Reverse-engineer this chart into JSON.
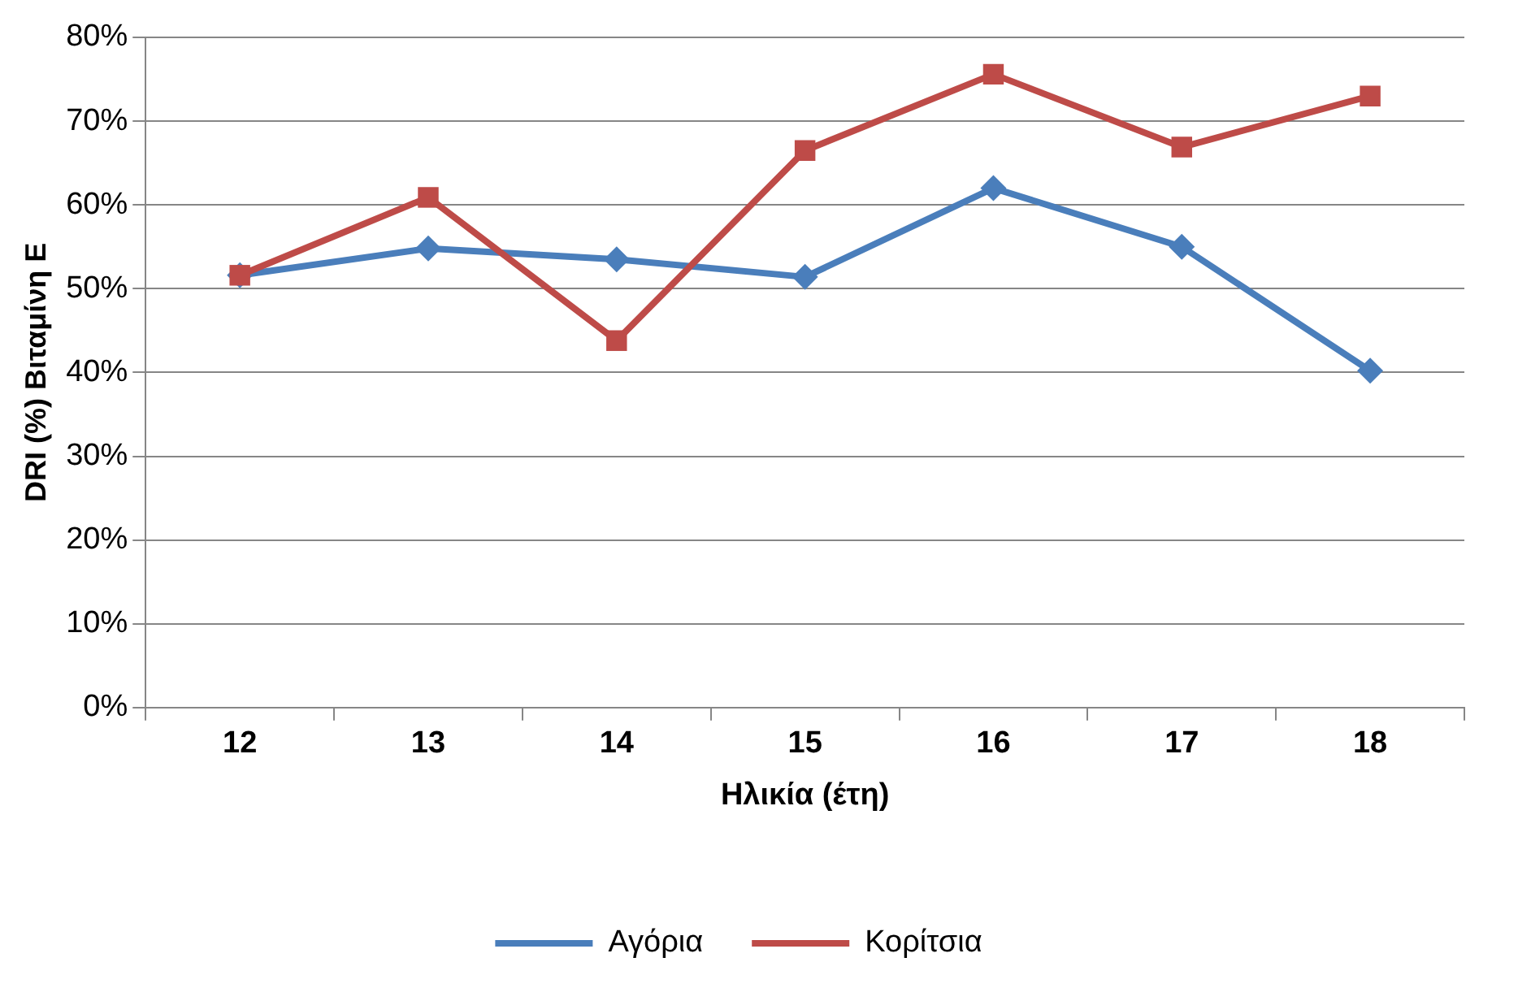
{
  "chart_data": {
    "type": "line",
    "xlabel": "Ηλικία (έτη)",
    "ylabel": "DRI (%) Βιταμίνη E",
    "categories": [
      "12",
      "13",
      "14",
      "15",
      "16",
      "17",
      "18"
    ],
    "series": [
      {
        "name": "Αγόρια",
        "color": "#4a7ebb",
        "marker": "diamond",
        "values": [
          51.6,
          54.8,
          53.5,
          51.4,
          62,
          55,
          40.2
        ]
      },
      {
        "name": "Κορίτσια",
        "color": "#be4b48",
        "marker": "square",
        "values": [
          51.6,
          60.9,
          43.8,
          66.5,
          75.6,
          66.9,
          73
        ]
      }
    ],
    "ylim": [
      0,
      80
    ],
    "yticks": [
      {
        "value": 0,
        "label": "0%"
      },
      {
        "value": 10,
        "label": "10%"
      },
      {
        "value": 20,
        "label": "20%"
      },
      {
        "value": 30,
        "label": "30%"
      },
      {
        "value": 40,
        "label": "40%"
      },
      {
        "value": 50,
        "label": "50%"
      },
      {
        "value": 60,
        "label": "60%"
      },
      {
        "value": 70,
        "label": "70%"
      },
      {
        "value": 80,
        "label": "80%"
      }
    ],
    "grid": "y",
    "legend": "bottom",
    "line_style": "solid"
  }
}
